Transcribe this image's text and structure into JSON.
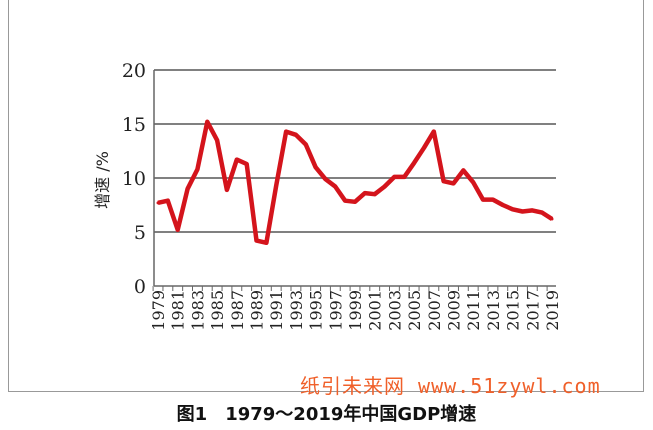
{
  "chart_data": {
    "type": "line",
    "title": "",
    "xlabel": "",
    "ylabel": "增速 /%",
    "ylim": [
      0,
      20
    ],
    "yticks": [
      0,
      5,
      10,
      15,
      20
    ],
    "grid": true,
    "x": [
      1979,
      1980,
      1981,
      1982,
      1983,
      1984,
      1985,
      1986,
      1987,
      1988,
      1989,
      1990,
      1991,
      1992,
      1993,
      1994,
      1995,
      1996,
      1997,
      1998,
      1999,
      2000,
      2001,
      2002,
      2003,
      2004,
      2005,
      2006,
      2007,
      2008,
      2009,
      2010,
      2011,
      2012,
      2013,
      2014,
      2015,
      2016,
      2017,
      2018,
      2019
    ],
    "xtick_labels": [
      "1979",
      "1981",
      "1983",
      "1985",
      "1987",
      "1989",
      "1991",
      "1993",
      "1995",
      "1997",
      "1999",
      "2001",
      "2003",
      "2005",
      "2007",
      "2009",
      "2011",
      "2013",
      "2015",
      "2017",
      "2019"
    ],
    "series": [
      {
        "values": [
          7.7,
          7.9,
          5.2,
          9.0,
          10.8,
          15.2,
          13.5,
          8.9,
          11.7,
          11.3,
          4.2,
          4.0,
          9.3,
          14.3,
          14.0,
          13.1,
          11.0,
          9.9,
          9.2,
          7.9,
          7.8,
          8.6,
          8.5,
          9.2,
          10.1,
          10.1,
          11.4,
          12.8,
          14.3,
          9.7,
          9.5,
          10.7,
          9.6,
          8.0,
          8.0,
          7.5,
          7.1,
          6.9,
          7.0,
          6.8,
          6.2
        ]
      }
    ],
    "colors": {
      "line": "#d4141c",
      "grid": "#808080"
    }
  },
  "watermark": "纸引未来网 www.51zywl.com",
  "caption": "图1　1979～2019年中国GDP增速"
}
